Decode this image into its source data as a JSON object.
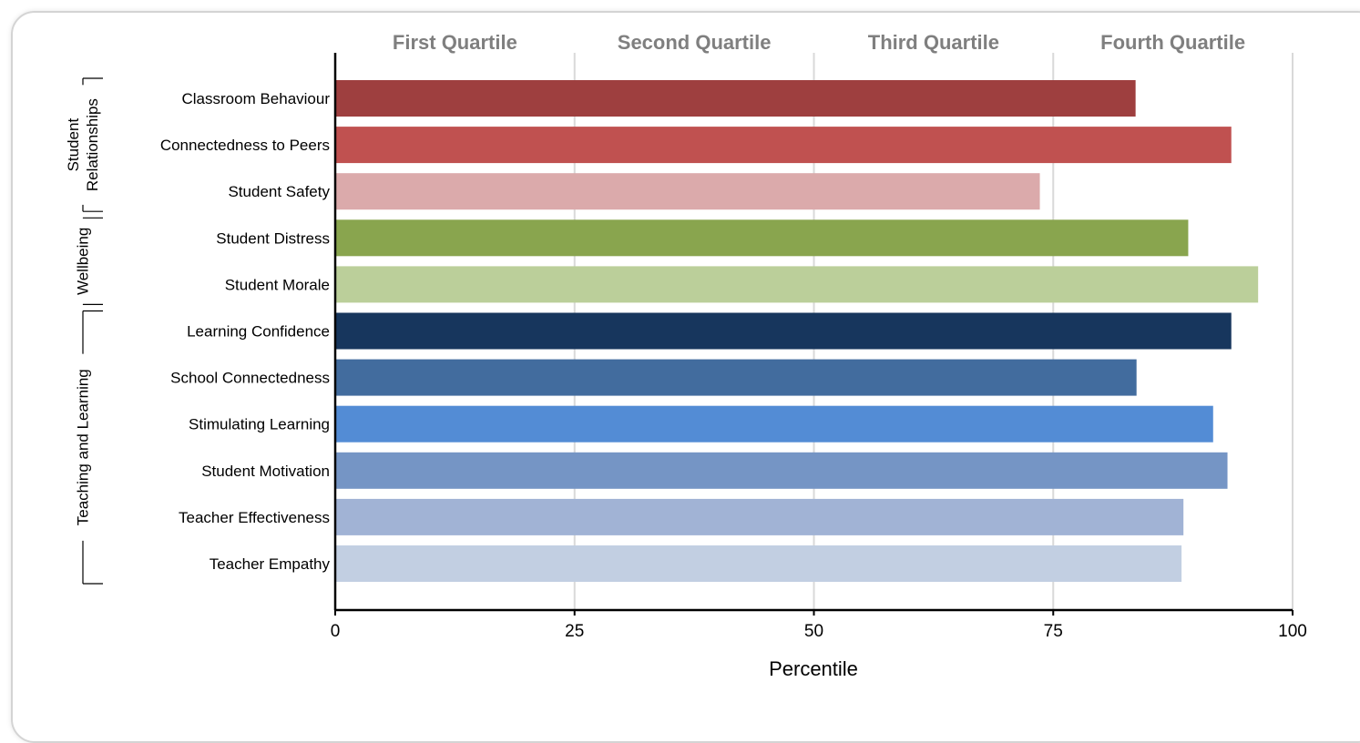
{
  "chart_data": {
    "type": "bar",
    "orientation": "horizontal",
    "title": "",
    "xlabel": "Percentile",
    "ylabel": "",
    "xlim": [
      0,
      100
    ],
    "xticks": [
      "0",
      "25",
      "50",
      "75",
      "100"
    ],
    "quartile_labels": [
      "First Quartile",
      "Second Quartile",
      "Third Quartile",
      "Fourth Quartile"
    ],
    "grid": "vertical",
    "groups": [
      {
        "label": "Student Relationships",
        "label_lines": [
          "Student",
          "Relationships"
        ],
        "start": 0,
        "end": 2
      },
      {
        "label": "Wellbeing",
        "label_lines": [
          "Wellbeing"
        ],
        "start": 3,
        "end": 4
      },
      {
        "label": "Teaching and Learning",
        "label_lines": [
          "Teaching and Learning"
        ],
        "start": 5,
        "end": 10
      }
    ],
    "categories": [
      "Classroom Behaviour",
      "Connectedness to Peers",
      "Student Safety",
      "Student Distress",
      "Student Morale",
      "Learning Confidence",
      "School Connectedness",
      "Stimulating Learning",
      "Student Motivation",
      "Teacher Effectiveness",
      "Teacher Empathy"
    ],
    "values": [
      83.6,
      93.6,
      73.6,
      89.1,
      96.4,
      93.6,
      83.7,
      91.7,
      93.2,
      88.6,
      88.4
    ],
    "colors": [
      "#9e3f3f",
      "#c05150",
      "#dbaaab",
      "#89a54e",
      "#bbcf9a",
      "#17365d",
      "#426c9e",
      "#538cd5",
      "#7595c5",
      "#a1b3d5",
      "#c2cfe2"
    ]
  }
}
